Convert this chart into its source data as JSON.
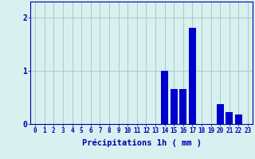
{
  "hours": [
    0,
    1,
    2,
    3,
    4,
    5,
    6,
    7,
    8,
    9,
    10,
    11,
    12,
    13,
    14,
    15,
    16,
    17,
    18,
    19,
    20,
    21,
    22,
    23
  ],
  "values": [
    0,
    0,
    0,
    0,
    0,
    0,
    0,
    0,
    0,
    0,
    0,
    0,
    0,
    0,
    1.0,
    0.65,
    0.65,
    1.8,
    0,
    0,
    0.38,
    0.22,
    0.18,
    0
  ],
  "bar_color": "#0000cc",
  "background_color": "#d8f0f0",
  "grid_color": "#adc8c8",
  "axis_color": "#0000aa",
  "xlabel": "Précipitations 1h ( mm )",
  "xlabel_fontsize": 7.5,
  "tick_fontsize": 5.5,
  "ytick_fontsize": 7,
  "yticks": [
    0,
    1,
    2
  ],
  "ylim": [
    0,
    2.3
  ],
  "xlim": [
    -0.5,
    23.5
  ]
}
